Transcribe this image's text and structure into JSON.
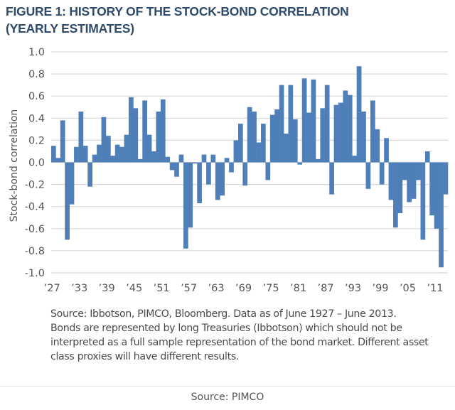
{
  "figure": {
    "title_line1": "FIGURE 1: HISTORY OF THE STOCK-BOND CORRELATION",
    "title_line2": "(YEARLY ESTIMATES)",
    "note_lines": [
      "Source: Ibbotson, PIMCO, Bloomberg. Data as of June 1927 – June 2013.",
      "Bonds are represented by long Treasuries (Ibbotson) which should not be",
      "interpreted as a full sample representation of the bond market. Different asset",
      "class proxies will have different results."
    ],
    "footer": "Source: PIMCO",
    "bar_color": "#4f7fb8",
    "title_color": "#2d4a6b"
  },
  "chart_data": {
    "type": "bar",
    "title": "FIGURE 1: HISTORY OF THE STOCK-BOND CORRELATION (YEARLY ESTIMATES)",
    "xlabel": "",
    "ylabel": "Stock-bond correlation",
    "ylim": [
      -1.0,
      1.0
    ],
    "yticks": [
      "1.0",
      "0.8",
      "0.6",
      "0.4",
      "0.2",
      "0.0",
      "-0.2",
      "-0.4",
      "-0.6",
      "-0.8",
      "-1.0"
    ],
    "ytick_values": [
      1.0,
      0.8,
      0.6,
      0.4,
      0.2,
      0.0,
      -0.2,
      -0.4,
      -0.6,
      -0.8,
      -1.0
    ],
    "grid": true,
    "legend": "none",
    "xtick_labels": [
      "’27",
      "’33",
      "’39",
      "’45",
      "’51",
      "’57",
      "’63",
      "’69",
      "’75",
      "’81",
      "’87",
      "’93",
      "’99",
      "’05",
      "’11"
    ],
    "xtick_years": [
      1927,
      1933,
      1939,
      1945,
      1951,
      1957,
      1963,
      1969,
      1975,
      1981,
      1987,
      1993,
      1999,
      2005,
      2011
    ],
    "categories": [
      1927,
      1928,
      1929,
      1930,
      1931,
      1932,
      1933,
      1934,
      1935,
      1936,
      1937,
      1938,
      1939,
      1940,
      1941,
      1942,
      1943,
      1944,
      1945,
      1946,
      1947,
      1948,
      1949,
      1950,
      1951,
      1952,
      1953,
      1954,
      1955,
      1956,
      1957,
      1958,
      1959,
      1960,
      1961,
      1962,
      1963,
      1964,
      1965,
      1966,
      1967,
      1968,
      1969,
      1970,
      1971,
      1972,
      1973,
      1974,
      1975,
      1976,
      1977,
      1978,
      1979,
      1980,
      1981,
      1982,
      1983,
      1984,
      1985,
      1986,
      1987,
      1988,
      1989,
      1990,
      1991,
      1992,
      1993,
      1994,
      1995,
      1996,
      1997,
      1998,
      1999,
      2000,
      2001,
      2002,
      2003,
      2004,
      2005,
      2006,
      2007,
      2008,
      2009,
      2010,
      2011,
      2012,
      2013
    ],
    "values": [
      0.15,
      0.04,
      0.38,
      -0.7,
      -0.38,
      0.14,
      0.46,
      0.15,
      -0.22,
      0.07,
      0.16,
      0.41,
      0.24,
      0.06,
      0.16,
      0.14,
      0.25,
      0.59,
      0.49,
      0.03,
      0.56,
      0.25,
      0.1,
      0.46,
      0.57,
      0.05,
      -0.07,
      -0.13,
      0.07,
      -0.78,
      -0.59,
      -0.01,
      -0.37,
      0.07,
      -0.2,
      0.07,
      -0.34,
      -0.3,
      0.04,
      -0.09,
      0.2,
      0.35,
      -0.21,
      0.5,
      0.46,
      0.18,
      0.35,
      -0.16,
      0.43,
      0.48,
      0.7,
      0.26,
      0.7,
      0.39,
      -0.02,
      0.76,
      0.45,
      0.75,
      0.03,
      0.49,
      0.7,
      -0.29,
      0.52,
      0.54,
      0.65,
      0.61,
      0.06,
      0.87,
      0.46,
      -0.24,
      0.56,
      0.3,
      -0.2,
      0.22,
      -0.34,
      -0.59,
      -0.46,
      -0.16,
      -0.36,
      -0.33,
      -0.16,
      -0.7,
      0.1,
      -0.48,
      -0.6,
      -0.95,
      -0.29
    ]
  }
}
